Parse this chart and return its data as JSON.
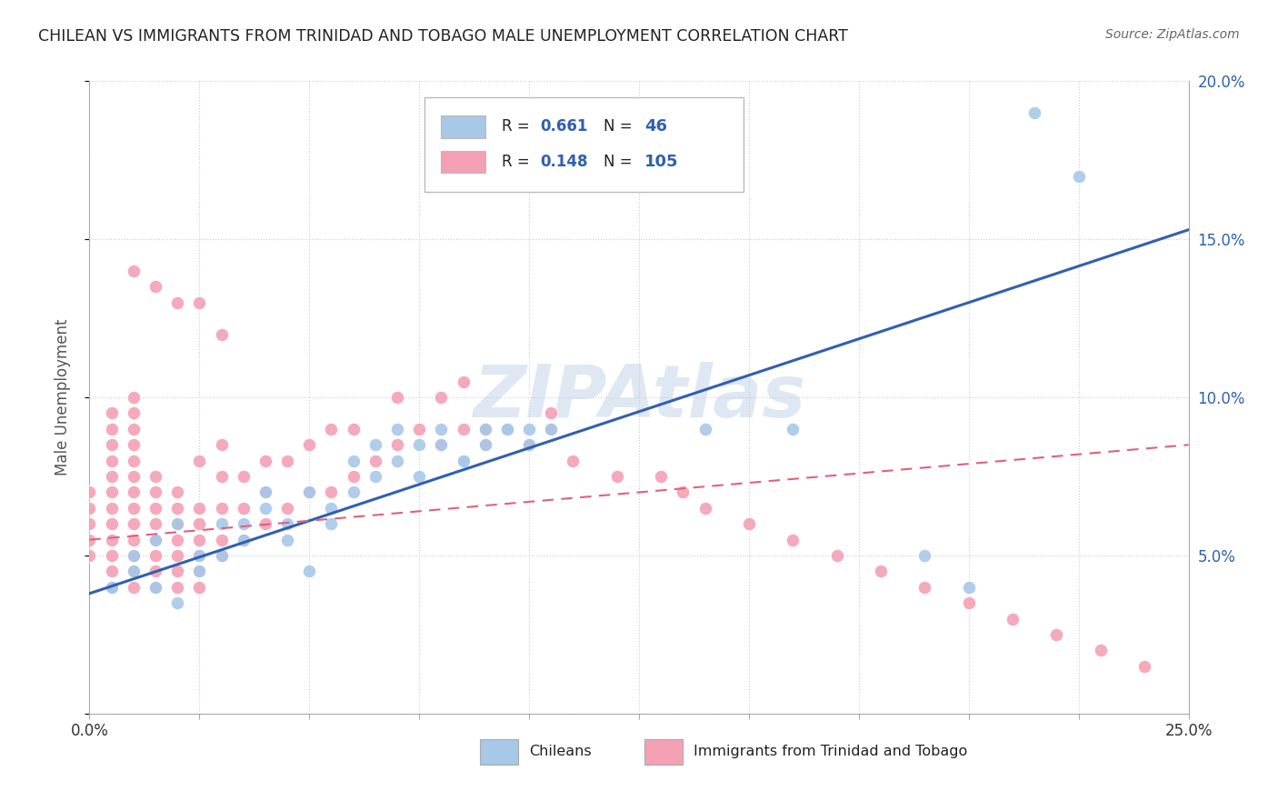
{
  "title": "CHILEAN VS IMMIGRANTS FROM TRINIDAD AND TOBAGO MALE UNEMPLOYMENT CORRELATION CHART",
  "source": "Source: ZipAtlas.com",
  "ylabel": "Male Unemployment",
  "watermark": "ZIPAtlas",
  "legend_blue_label": "Chileans",
  "legend_pink_label": "Immigrants from Trinidad and Tobago",
  "R_blue": 0.661,
  "N_blue": 46,
  "R_pink": 0.148,
  "N_pink": 105,
  "xmin": 0.0,
  "xmax": 0.25,
  "ymin": 0.0,
  "ymax": 0.2,
  "yticks": [
    0.0,
    0.05,
    0.1,
    0.15,
    0.2
  ],
  "xticks": [
    0.0,
    0.025,
    0.05,
    0.075,
    0.1,
    0.125,
    0.15,
    0.175,
    0.2,
    0.225,
    0.25
  ],
  "blue_color": "#a8c8e8",
  "pink_color": "#f4a0b5",
  "trend_blue_color": "#3060b0",
  "trend_pink_color": "#e06080",
  "grid_color": "#cccccc",
  "background_color": "#ffffff",
  "trend_blue_intercept": 0.038,
  "trend_blue_slope": 0.46,
  "trend_pink_intercept": 0.055,
  "trend_pink_slope": 0.12,
  "blue_x": [
    0.005,
    0.01,
    0.015,
    0.02,
    0.025,
    0.03,
    0.035,
    0.04,
    0.045,
    0.05,
    0.055,
    0.06,
    0.065,
    0.07,
    0.075,
    0.08,
    0.085,
    0.09,
    0.095,
    0.1,
    0.01,
    0.015,
    0.02,
    0.025,
    0.03,
    0.035,
    0.04,
    0.045,
    0.05,
    0.055,
    0.06,
    0.065,
    0.07,
    0.075,
    0.08,
    0.085,
    0.09,
    0.095,
    0.1,
    0.105,
    0.14,
    0.16,
    0.19,
    0.2,
    0.215,
    0.225
  ],
  "blue_y": [
    0.04,
    0.05,
    0.055,
    0.06,
    0.05,
    0.06,
    0.055,
    0.065,
    0.06,
    0.07,
    0.065,
    0.07,
    0.075,
    0.08,
    0.075,
    0.085,
    0.08,
    0.085,
    0.09,
    0.09,
    0.045,
    0.04,
    0.035,
    0.045,
    0.05,
    0.06,
    0.07,
    0.055,
    0.045,
    0.06,
    0.08,
    0.085,
    0.09,
    0.085,
    0.09,
    0.08,
    0.09,
    0.09,
    0.085,
    0.09,
    0.09,
    0.09,
    0.05,
    0.04,
    0.19,
    0.17
  ],
  "pink_x": [
    0.0,
    0.0,
    0.0,
    0.0,
    0.0,
    0.005,
    0.005,
    0.005,
    0.005,
    0.005,
    0.005,
    0.005,
    0.005,
    0.005,
    0.005,
    0.005,
    0.005,
    0.01,
    0.01,
    0.01,
    0.01,
    0.01,
    0.01,
    0.01,
    0.01,
    0.01,
    0.01,
    0.01,
    0.01,
    0.01,
    0.015,
    0.015,
    0.015,
    0.015,
    0.015,
    0.015,
    0.015,
    0.015,
    0.02,
    0.02,
    0.02,
    0.02,
    0.02,
    0.02,
    0.02,
    0.025,
    0.025,
    0.025,
    0.025,
    0.025,
    0.025,
    0.025,
    0.03,
    0.03,
    0.03,
    0.03,
    0.03,
    0.035,
    0.035,
    0.035,
    0.04,
    0.04,
    0.04,
    0.045,
    0.045,
    0.05,
    0.05,
    0.055,
    0.055,
    0.06,
    0.06,
    0.065,
    0.07,
    0.07,
    0.075,
    0.08,
    0.08,
    0.085,
    0.085,
    0.09,
    0.09,
    0.095,
    0.1,
    0.105,
    0.105,
    0.11,
    0.12,
    0.13,
    0.135,
    0.14,
    0.15,
    0.16,
    0.17,
    0.18,
    0.19,
    0.2,
    0.21,
    0.22,
    0.23,
    0.24,
    0.01,
    0.015,
    0.02,
    0.025,
    0.03
  ],
  "pink_y": [
    0.05,
    0.055,
    0.06,
    0.065,
    0.07,
    0.04,
    0.045,
    0.05,
    0.055,
    0.06,
    0.065,
    0.07,
    0.075,
    0.08,
    0.085,
    0.09,
    0.095,
    0.04,
    0.045,
    0.05,
    0.055,
    0.06,
    0.065,
    0.07,
    0.075,
    0.08,
    0.085,
    0.09,
    0.095,
    0.1,
    0.04,
    0.045,
    0.05,
    0.055,
    0.06,
    0.065,
    0.07,
    0.075,
    0.04,
    0.045,
    0.05,
    0.055,
    0.06,
    0.065,
    0.07,
    0.04,
    0.045,
    0.05,
    0.055,
    0.06,
    0.065,
    0.08,
    0.05,
    0.055,
    0.065,
    0.075,
    0.085,
    0.055,
    0.065,
    0.075,
    0.06,
    0.07,
    0.08,
    0.065,
    0.08,
    0.07,
    0.085,
    0.07,
    0.09,
    0.075,
    0.09,
    0.08,
    0.085,
    0.1,
    0.09,
    0.085,
    0.1,
    0.09,
    0.105,
    0.09,
    0.085,
    0.09,
    0.085,
    0.09,
    0.095,
    0.08,
    0.075,
    0.075,
    0.07,
    0.065,
    0.06,
    0.055,
    0.05,
    0.045,
    0.04,
    0.035,
    0.03,
    0.025,
    0.02,
    0.015,
    0.14,
    0.135,
    0.13,
    0.13,
    0.12
  ]
}
